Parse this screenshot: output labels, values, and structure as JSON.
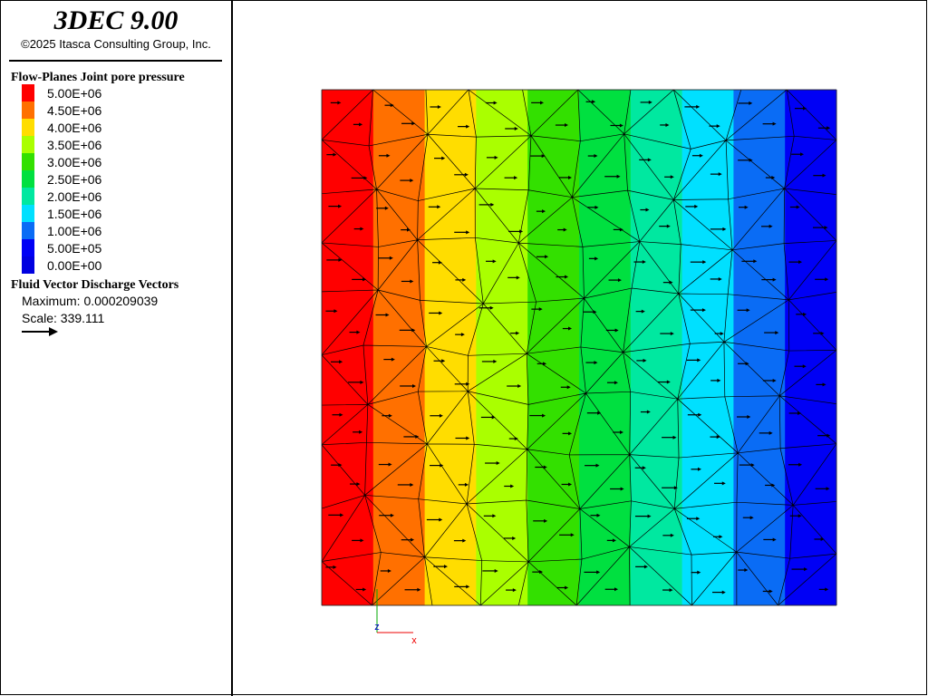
{
  "header": {
    "title": "3DEC 9.00",
    "copyright": "©2025 Itasca Consulting Group, Inc."
  },
  "legend": {
    "title": "Flow-Planes Joint pore pressure",
    "entries": [
      {
        "label": "5.00E+06",
        "color": "#ff0000"
      },
      {
        "label": "4.50E+06",
        "color": "#ff7000"
      },
      {
        "label": "4.00E+06",
        "color": "#ffdd00"
      },
      {
        "label": "3.50E+06",
        "color": "#aaff00"
      },
      {
        "label": "3.00E+06",
        "color": "#33e000"
      },
      {
        "label": "2.50E+06",
        "color": "#00e040"
      },
      {
        "label": "2.00E+06",
        "color": "#00e8a0"
      },
      {
        "label": "1.50E+06",
        "color": "#00e0ff"
      },
      {
        "label": "1.00E+06",
        "color": "#0a6cf5"
      },
      {
        "label": "5.00E+05",
        "color": "#0000f5"
      },
      {
        "label": "0.00E+00",
        "color": "#0000e0"
      }
    ]
  },
  "vectors": {
    "title": "Fluid Vector Discharge Vectors",
    "maximum": "Maximum: 0.000209039",
    "scale": "Scale: 339.111"
  },
  "axes": {
    "z": "z",
    "x": "x"
  }
}
